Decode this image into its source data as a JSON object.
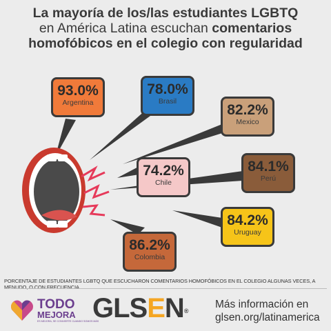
{
  "title": {
    "line1": "La mayoría de los/las estudiantes LGBTQ",
    "line2_normal": "en América Latina escuchan ",
    "line2_bold": "comentarios",
    "line3": "homofóbicos en el colegio con regularidad"
  },
  "chart_data": {
    "type": "bar",
    "categories": [
      "Argentina",
      "Brasil",
      "Mexico",
      "Chile",
      "Perú",
      "Colombia",
      "Uruguay"
    ],
    "values": [
      93.0,
      78.0,
      82.2,
      74.2,
      84.1,
      86.2,
      84.2
    ],
    "labels": [
      "93.0%",
      "78.0%",
      "82.2%",
      "74.2%",
      "84.1%",
      "86.2%",
      "84.2%"
    ],
    "colors": [
      "#f07a3a",
      "#2a7bc4",
      "#c9a07a",
      "#f5c8c8",
      "#8a5c3a",
      "#c5683a",
      "#f6c419"
    ],
    "ylim": [
      0,
      100
    ]
  },
  "footnote": "PORCENTAJE DE ESTUDIANTES LGBTQ QUE ESCUCHARON COMENTARIOS HOMOFÓBICOS EN EL COLEGIO ALGUNAS VECES, A MENUDO, O CON FRECUENCIA.",
  "logos": {
    "todo_line1": "TODO",
    "todo_line2": "MEJORA",
    "todo_sub": "ES MEJORA, SE CONVIERTE CUANDO SOMOS MÁS",
    "glsen_pre": "GLS",
    "glsen_e": "E",
    "glsen_post": "N",
    "glsen_mark": "®"
  },
  "more_info": {
    "line1": "Más información en",
    "line2": "glsen.org/latinamerica"
  }
}
